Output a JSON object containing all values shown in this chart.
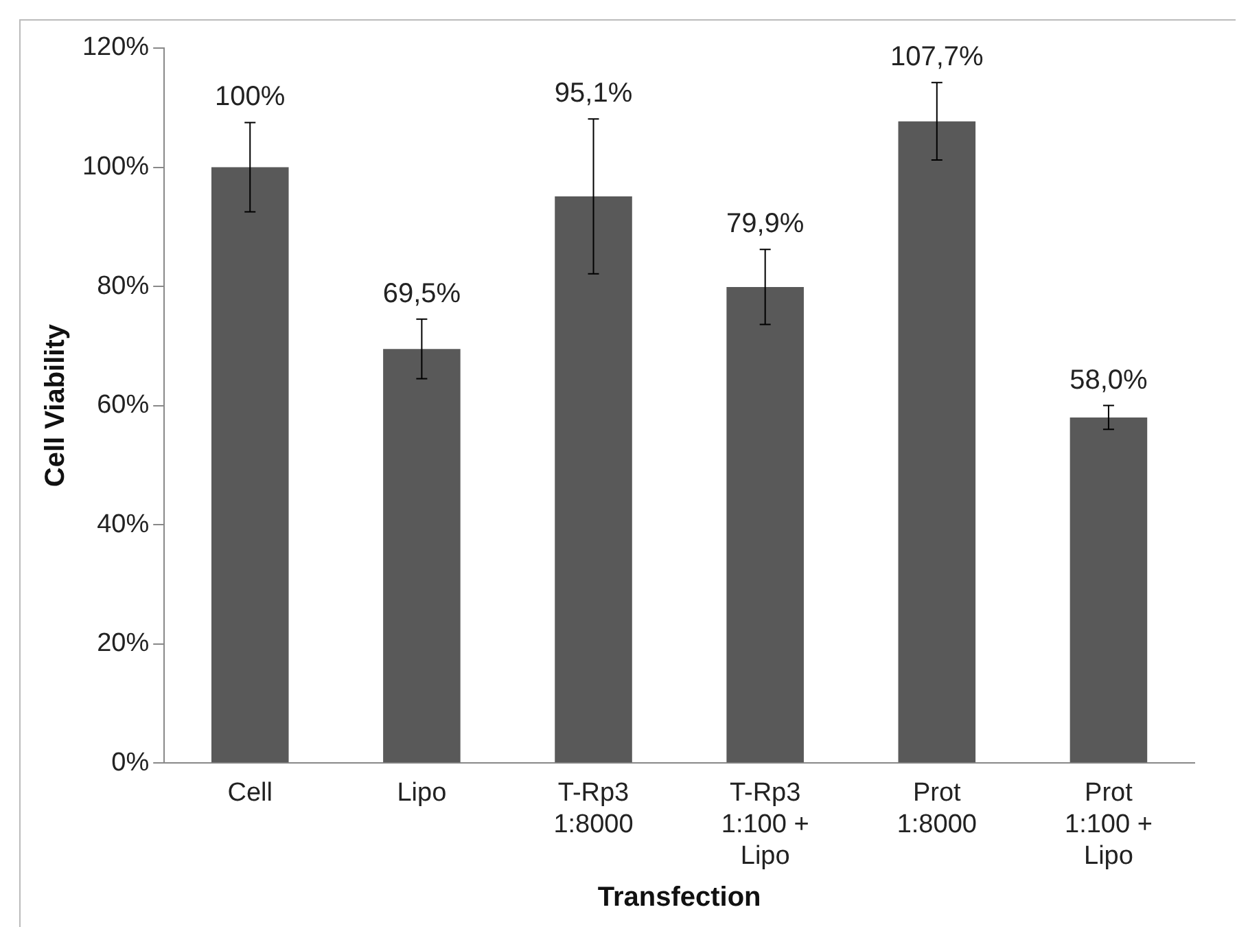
{
  "chart_data": {
    "type": "bar",
    "xlabel": "Transfection",
    "ylabel": "Cell Viability",
    "categories": [
      "Cell",
      "Lipo",
      "T-Rp3\n1:8000",
      "T-Rp3\n1:100 +\nLipo",
      "Prot\n1:8000",
      "Prot\n1:100 +\nLipo"
    ],
    "values": [
      100,
      69.5,
      95.1,
      79.9,
      107.7,
      58.0
    ],
    "value_labels": [
      "100%",
      "69,5%",
      "95,1%",
      "79,9%",
      "107,7%",
      "58,0%"
    ],
    "errors": [
      7.5,
      5,
      13,
      6.3,
      6.5,
      2
    ],
    "color": "#595959",
    "ylim": [
      0,
      120
    ],
    "yticks": [
      {
        "value": 0,
        "label": "0%"
      },
      {
        "value": 20,
        "label": "20%"
      },
      {
        "value": 40,
        "label": "40%"
      },
      {
        "value": 60,
        "label": "60%"
      },
      {
        "value": 80,
        "label": "80%"
      },
      {
        "value": 100,
        "label": "100%"
      },
      {
        "value": 120,
        "label": "120%"
      }
    ],
    "grid": false,
    "legend": false
  }
}
